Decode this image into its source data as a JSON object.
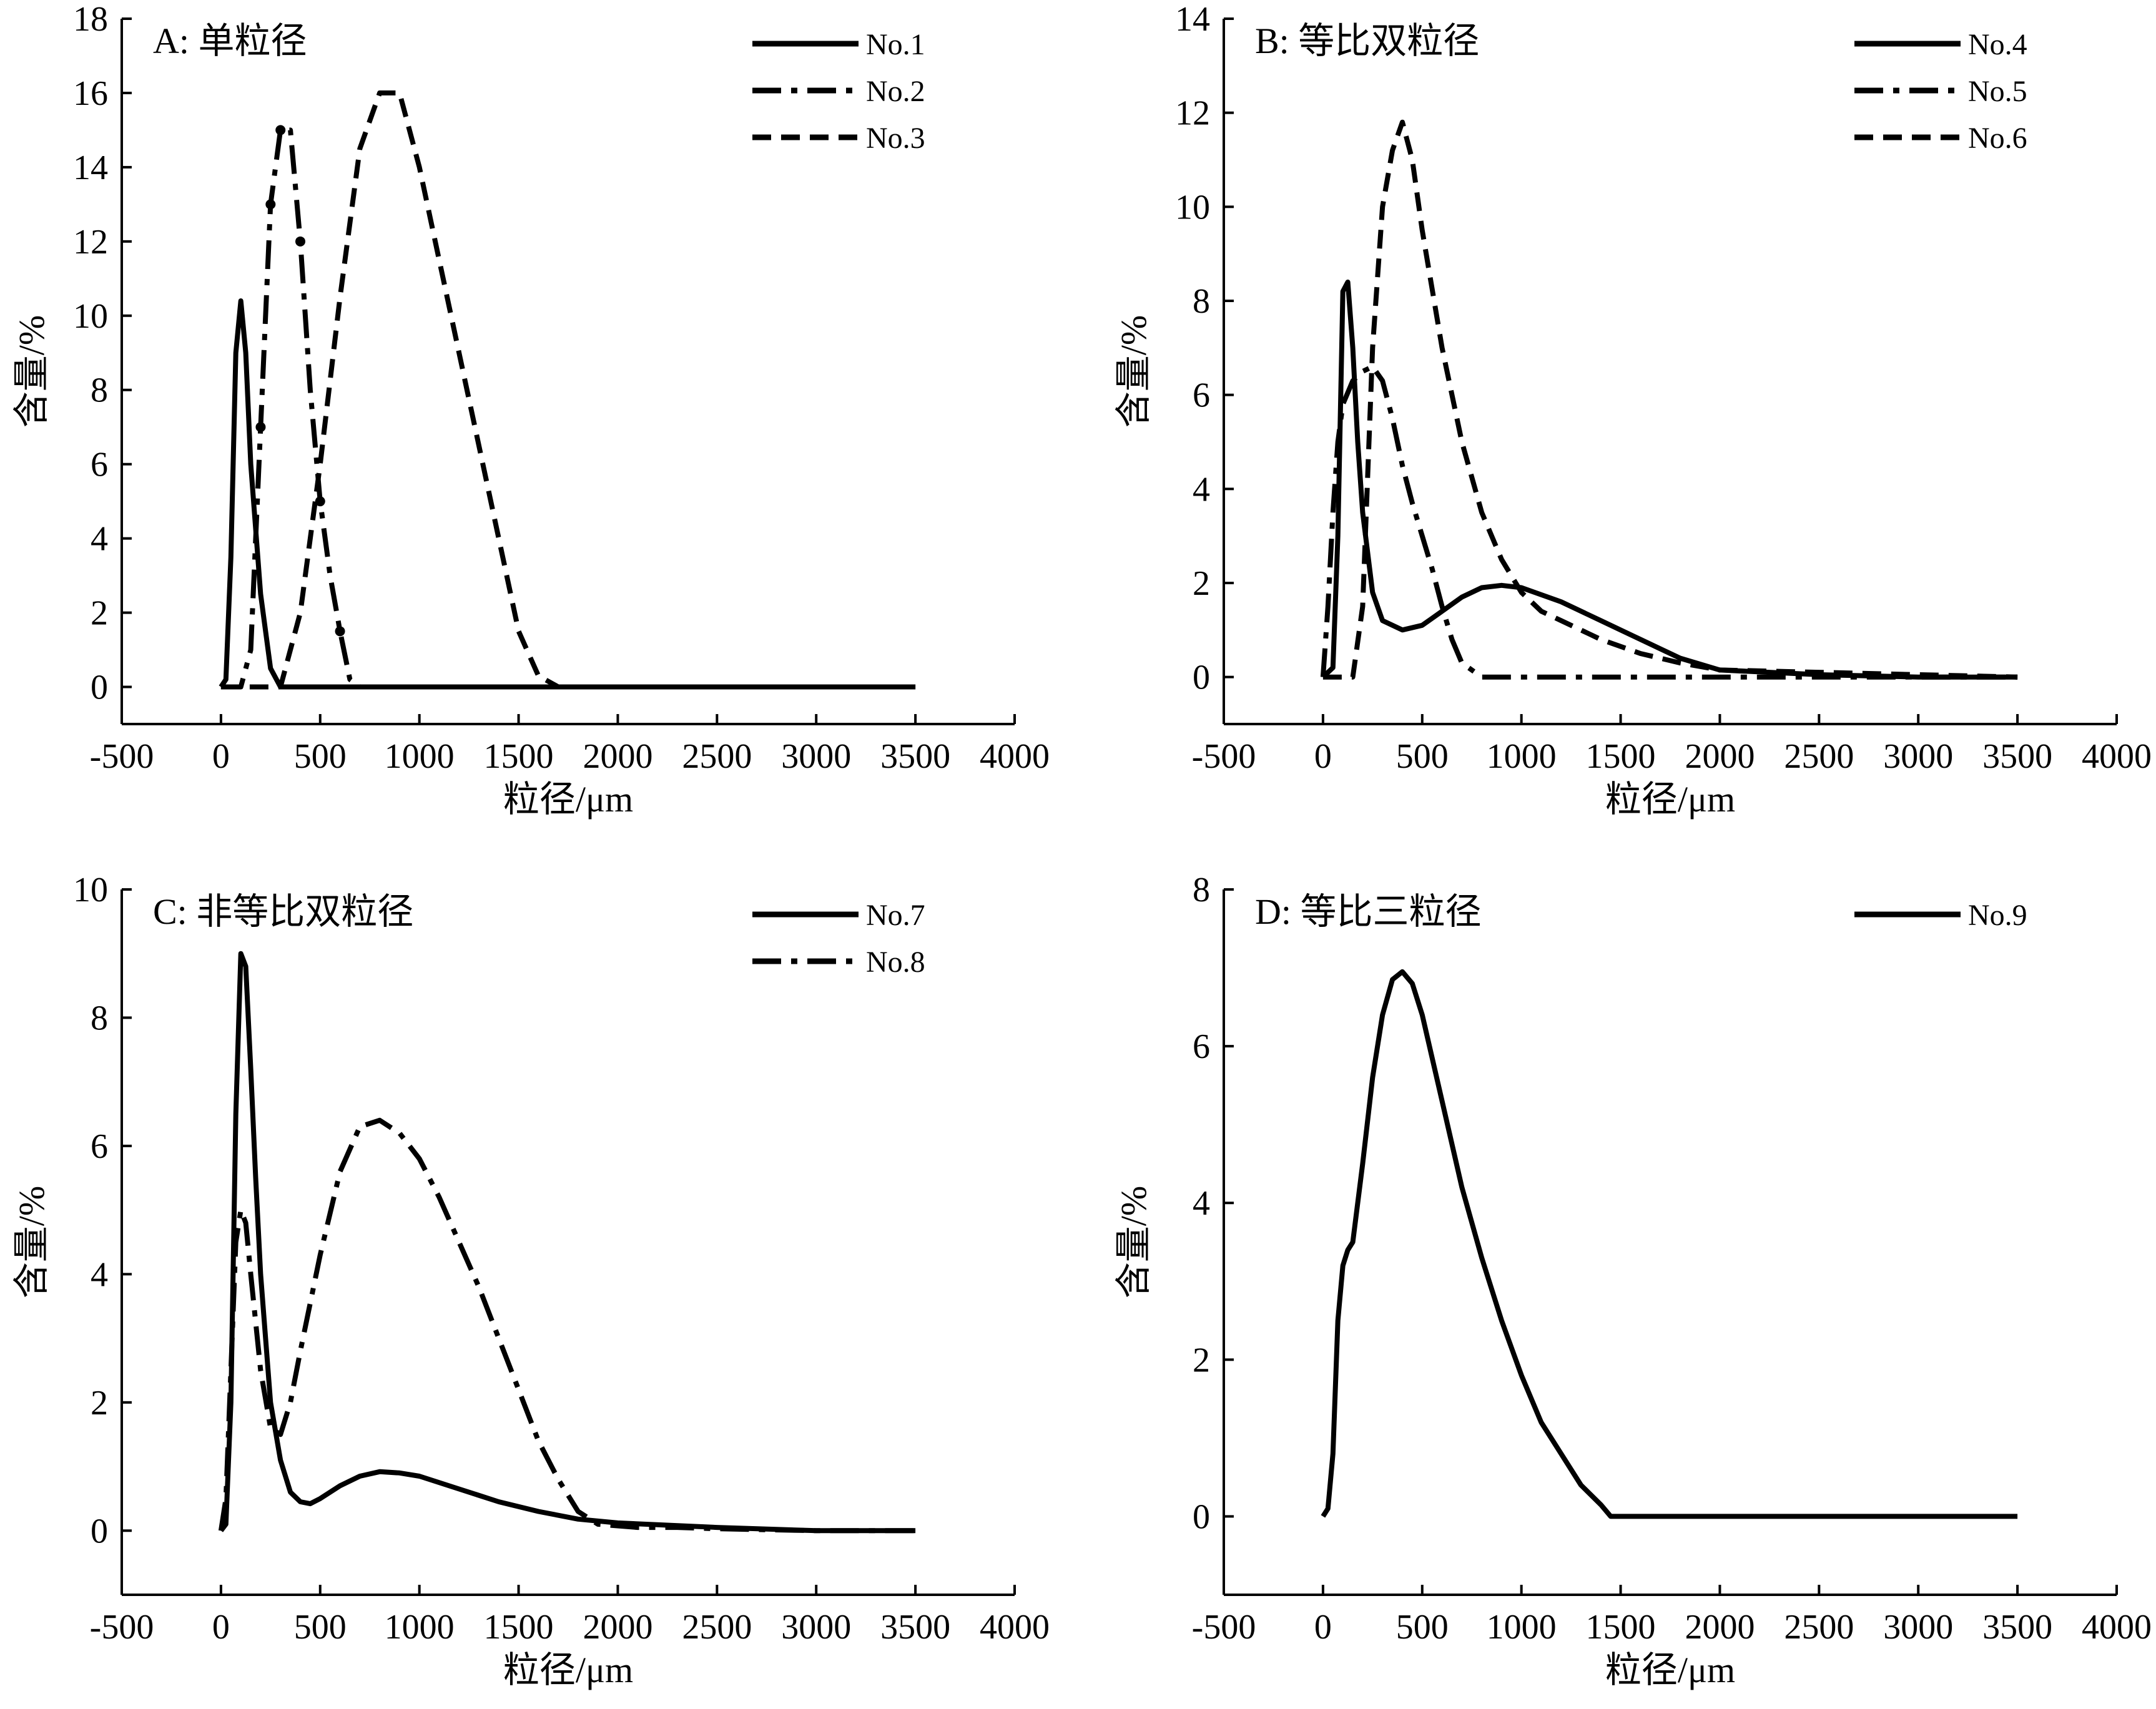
{
  "figure": {
    "colors": {
      "background": "#ffffff",
      "ink": "#000000"
    },
    "panels": [
      {
        "id": "A",
        "title": "A: 单粒径",
        "xlabel": "粒径/μm",
        "ylabel": "含量/%",
        "xlim": [
          -500,
          4000
        ],
        "ylim": [
          -1,
          18
        ],
        "xticks": [
          -500,
          0,
          500,
          1000,
          1500,
          2000,
          2500,
          3000,
          3500,
          4000
        ],
        "yticks": [
          0,
          2,
          4,
          6,
          8,
          10,
          12,
          14,
          16,
          18
        ],
        "legend_position": "top-right",
        "series": [
          {
            "name": "No.1",
            "style": "solid",
            "x": [
              0,
              25,
              50,
              75,
              100,
              125,
              150,
              200,
              250,
              300,
              400,
              700,
              1000,
              2000,
              3000,
              3500
            ],
            "y": [
              0,
              0.2,
              3.5,
              9.0,
              10.4,
              9.0,
              6.0,
              2.5,
              0.5,
              0,
              0,
              0,
              0,
              0,
              0,
              0
            ]
          },
          {
            "name": "No.2",
            "style": "dashdot",
            "x": [
              0,
              100,
              150,
              200,
              250,
              300,
              350,
              400,
              450,
              500,
              550,
              600,
              650,
              700,
              1000,
              2000,
              3000,
              3500
            ],
            "y": [
              0,
              0,
              1.0,
              7.0,
              13.0,
              15.0,
              15.0,
              12.0,
              8.0,
              5.0,
              3.0,
              1.5,
              0.2,
              0,
              0,
              0,
              0,
              0
            ],
            "marker_points": [
              [
                200,
                7.0
              ],
              [
                250,
                13.0
              ],
              [
                300,
                15.0
              ],
              [
                400,
                12.0
              ],
              [
                500,
                5.0
              ],
              [
                600,
                1.5
              ]
            ]
          },
          {
            "name": "No.3",
            "style": "dash",
            "x": [
              0,
              300,
              400,
              500,
              600,
              700,
              800,
              900,
              1000,
              1100,
              1200,
              1300,
              1400,
              1500,
              1600,
              1700,
              2000,
              2500,
              3000,
              3500
            ],
            "y": [
              0,
              0,
              2.0,
              6.0,
              10.5,
              14.5,
              16.0,
              16.0,
              14.0,
              11.5,
              9.0,
              6.5,
              4.0,
              1.5,
              0.3,
              0,
              0,
              0,
              0,
              0
            ]
          }
        ]
      },
      {
        "id": "B",
        "title": "B: 等比双粒径",
        "xlabel": "粒径/μm",
        "ylabel": "含量/%",
        "xlim": [
          -500,
          4000
        ],
        "ylim": [
          -1,
          14
        ],
        "xticks": [
          -500,
          0,
          500,
          1000,
          1500,
          2000,
          2500,
          3000,
          3500,
          4000
        ],
        "yticks": [
          0,
          2,
          4,
          6,
          8,
          10,
          12,
          14
        ],
        "legend_position": "top-right",
        "series": [
          {
            "name": "No.4",
            "style": "solid",
            "x": [
              0,
              50,
              75,
              100,
              125,
              150,
              175,
              200,
              250,
              300,
              400,
              500,
              600,
              700,
              800,
              900,
              1000,
              1200,
              1400,
              1600,
              1800,
              2000,
              2500,
              3000,
              3500
            ],
            "y": [
              0,
              0.2,
              3.0,
              8.2,
              8.4,
              7.0,
              5.0,
              3.5,
              1.8,
              1.2,
              1.0,
              1.1,
              1.4,
              1.7,
              1.9,
              1.95,
              1.9,
              1.6,
              1.2,
              0.8,
              0.4,
              0.15,
              0.05,
              0,
              0
            ]
          },
          {
            "name": "No.5",
            "style": "dashdot",
            "x": [
              0,
              25,
              50,
              75,
              100,
              150,
              200,
              250,
              300,
              350,
              400,
              450,
              500,
              550,
              600,
              650,
              700,
              800,
              1000,
              1500,
              2000,
              2500,
              3000,
              3500
            ],
            "y": [
              0,
              1.5,
              3.5,
              5.0,
              5.8,
              6.3,
              6.5,
              6.6,
              6.3,
              5.5,
              4.5,
              3.7,
              3.0,
              2.3,
              1.5,
              0.8,
              0.3,
              0,
              0,
              0,
              0,
              0,
              0,
              0
            ]
          },
          {
            "name": "No.6",
            "style": "dash",
            "x": [
              0,
              150,
              200,
              250,
              300,
              350,
              400,
              450,
              500,
              600,
              700,
              800,
              900,
              1000,
              1100,
              1200,
              1400,
              1600,
              1800,
              2000,
              2500,
              3000,
              3500
            ],
            "y": [
              0,
              0,
              1.5,
              7.0,
              10.0,
              11.2,
              11.8,
              11.0,
              9.5,
              7.0,
              5.0,
              3.5,
              2.5,
              1.8,
              1.4,
              1.2,
              0.8,
              0.5,
              0.3,
              0.15,
              0.1,
              0.05,
              0
            ]
          }
        ]
      },
      {
        "id": "C",
        "title": "C: 非等比双粒径",
        "xlabel": "粒径/μm",
        "ylabel": "含量/%",
        "xlim": [
          -500,
          4000
        ],
        "ylim": [
          -1,
          10
        ],
        "xticks": [
          -500,
          0,
          500,
          1000,
          1500,
          2000,
          2500,
          3000,
          3500,
          4000
        ],
        "yticks": [
          0,
          2,
          4,
          6,
          8,
          10
        ],
        "legend_position": "top-right",
        "series": [
          {
            "name": "No.7",
            "style": "solid",
            "x": [
              0,
              25,
              50,
              75,
              100,
              125,
              150,
              175,
              200,
              250,
              300,
              350,
              400,
              450,
              500,
              600,
              700,
              800,
              900,
              1000,
              1200,
              1400,
              1600,
              1800,
              2000,
              2500,
              3000,
              3500
            ],
            "y": [
              0,
              0.1,
              2.0,
              6.5,
              9.0,
              8.8,
              7.2,
              5.5,
              4.0,
              2.0,
              1.1,
              0.6,
              0.45,
              0.42,
              0.5,
              0.7,
              0.85,
              0.92,
              0.9,
              0.85,
              0.65,
              0.45,
              0.3,
              0.18,
              0.12,
              0.05,
              0,
              0
            ]
          },
          {
            "name": "No.8",
            "style": "dashdot",
            "x": [
              0,
              25,
              50,
              75,
              100,
              125,
              150,
              200,
              250,
              300,
              350,
              400,
              500,
              600,
              700,
              800,
              900,
              1000,
              1100,
              1200,
              1300,
              1400,
              1500,
              1600,
              1700,
              1800,
              1900,
              2100,
              2300,
              2500,
              3000,
              3500
            ],
            "y": [
              0,
              0.5,
              2.5,
              4.5,
              5.0,
              4.8,
              4.0,
              2.5,
              1.6,
              1.5,
              2.0,
              2.8,
              4.3,
              5.6,
              6.3,
              6.4,
              6.2,
              5.8,
              5.2,
              4.5,
              3.8,
              3.0,
              2.2,
              1.4,
              0.8,
              0.3,
              0.1,
              0.05,
              0.05,
              0.03,
              0,
              0
            ]
          }
        ]
      },
      {
        "id": "D",
        "title": "D: 等比三粒径",
        "xlabel": "粒径/μm",
        "ylabel": "含量/%",
        "xlim": [
          -500,
          4000
        ],
        "ylim": [
          -1,
          8
        ],
        "xticks": [
          -500,
          0,
          500,
          1000,
          1500,
          2000,
          2500,
          3000,
          3500,
          4000
        ],
        "yticks": [
          0,
          2,
          4,
          6,
          8
        ],
        "legend_position": "top-right",
        "series": [
          {
            "name": "No.9",
            "style": "solid",
            "x": [
              0,
              25,
              50,
              75,
              100,
              125,
              150,
              200,
              250,
              300,
              350,
              400,
              450,
              500,
              600,
              700,
              800,
              900,
              1000,
              1100,
              1200,
              1300,
              1400,
              1450,
              1500,
              2000,
              2500,
              3000,
              3500
            ],
            "y": [
              0,
              0.1,
              0.8,
              2.5,
              3.2,
              3.4,
              3.5,
              4.5,
              5.6,
              6.4,
              6.85,
              6.95,
              6.8,
              6.4,
              5.3,
              4.2,
              3.3,
              2.5,
              1.8,
              1.2,
              0.8,
              0.4,
              0.15,
              0,
              0,
              0,
              0,
              0,
              0
            ]
          }
        ]
      }
    ]
  }
}
